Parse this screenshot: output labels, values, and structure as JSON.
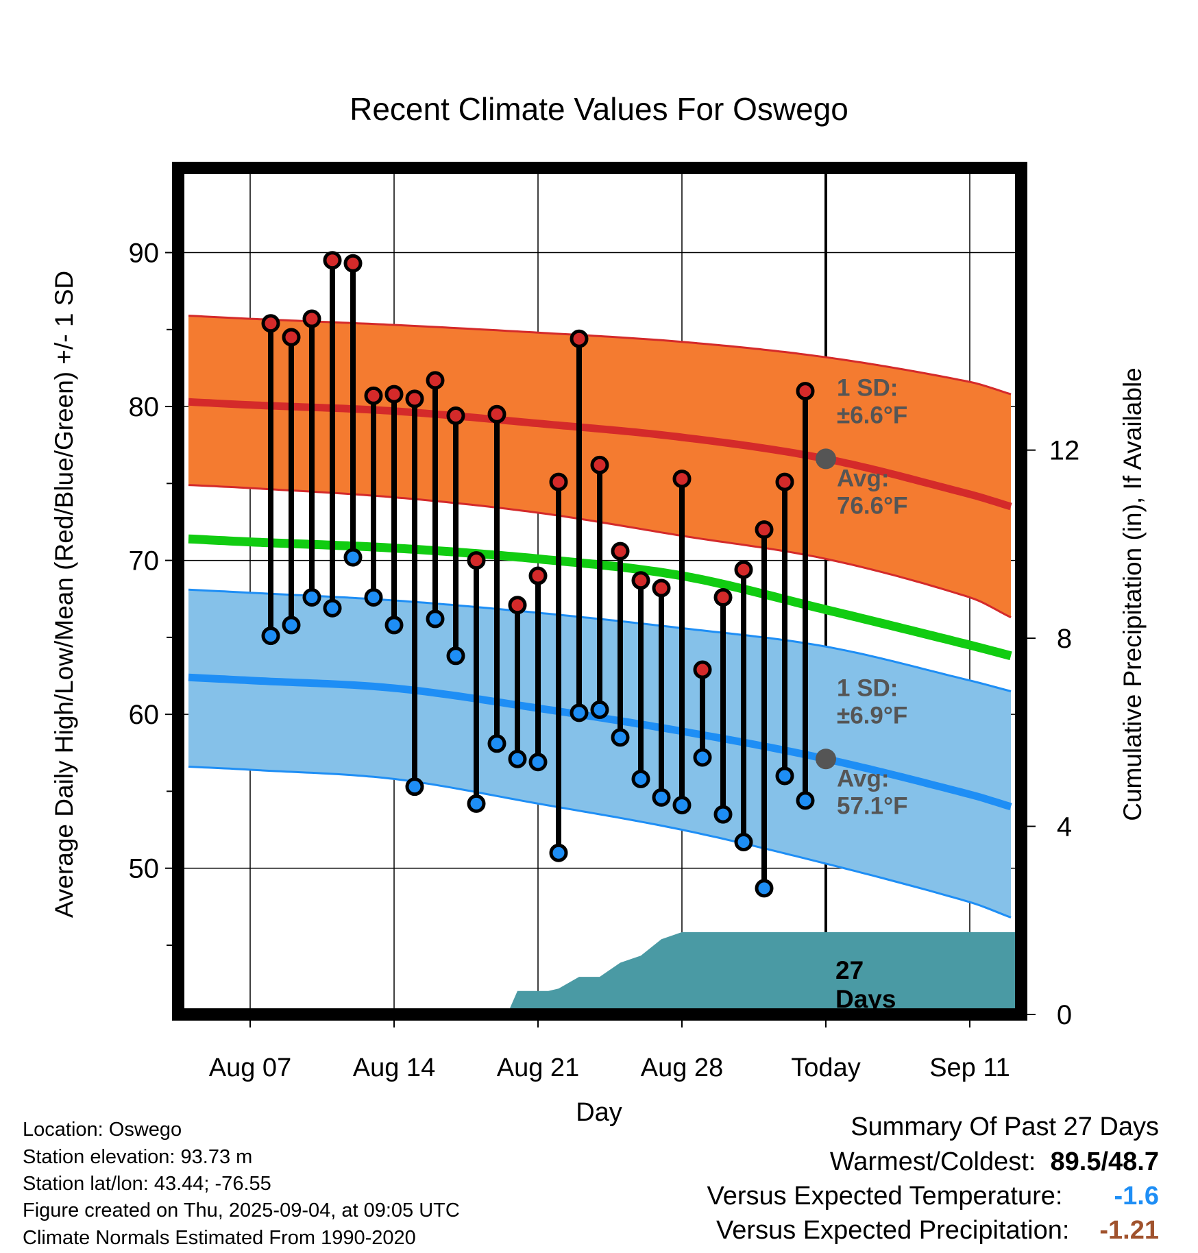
{
  "chart_data": {
    "type": "line",
    "title": "Recent Climate Values For Oswego",
    "xlabel": "Day",
    "ylabel": "Average Daily High/Low/Mean (Red/Blue/Green) +/- 1 SD",
    "y2label": "Cumulative Precipitation (in), If Available",
    "ylim": [
      40.5,
      95.5
    ],
    "y2lim": [
      0,
      18
    ],
    "xlim": [
      -3.5,
      37.5
    ],
    "x_ticks": [
      {
        "day": 0,
        "label": "Aug 07"
      },
      {
        "day": 7,
        "label": "Aug 14"
      },
      {
        "day": 14,
        "label": "Aug 21"
      },
      {
        "day": 21,
        "label": "Aug 28"
      },
      {
        "day": 28,
        "label": "Today"
      },
      {
        "day": 35,
        "label": "Sep 11"
      }
    ],
    "y_ticks": [
      50,
      60,
      70,
      80,
      90
    ],
    "y2_ticks": [
      0,
      4,
      8,
      12
    ],
    "today_day": 28,
    "grid": true,
    "colors": {
      "high_band": "#f47b30",
      "high_mean": "#d42a2a",
      "high_band_edge": "#d42a2a",
      "low_band": "#85c1e9",
      "low_mean": "#1e8ef5",
      "low_band_edge": "#1e8ef5",
      "mean_line": "#11cc11",
      "precip_fill": "#4a9aa4",
      "marker_high": "#d42a2a",
      "marker_low": "#1e8ef5",
      "today_marker": "#555555",
      "annotation": "#555555"
    },
    "normals": {
      "days": [
        -3,
        0,
        7,
        14,
        21,
        28,
        35,
        37
      ],
      "high_mean": [
        80.3,
        80.1,
        79.7,
        78.9,
        78.0,
        76.6,
        74.3,
        73.5
      ],
      "high_upper": [
        85.9,
        85.7,
        85.3,
        84.8,
        84.2,
        83.2,
        81.6,
        80.8
      ],
      "high_lower": [
        74.9,
        74.7,
        74.1,
        73.1,
        71.6,
        70.1,
        67.6,
        66.3
      ],
      "low_mean": [
        62.4,
        62.2,
        61.7,
        60.4,
        58.9,
        57.1,
        54.8,
        54.0
      ],
      "low_upper": [
        68.1,
        67.9,
        67.4,
        66.6,
        65.6,
        64.4,
        62.2,
        61.5
      ],
      "low_lower": [
        56.6,
        56.4,
        55.8,
        54.2,
        52.5,
        50.3,
        47.8,
        46.8
      ],
      "mean_line": [
        71.4,
        71.2,
        70.8,
        70.1,
        69.0,
        66.8,
        64.5,
        63.8
      ]
    },
    "observations": {
      "days": [
        1,
        2,
        3,
        4,
        5,
        6,
        7,
        8,
        9,
        10,
        11,
        12,
        13,
        14,
        15,
        16,
        17,
        18,
        19,
        20,
        21,
        22,
        23,
        24,
        25,
        26,
        27
      ],
      "high": [
        85.4,
        84.5,
        85.7,
        89.5,
        89.3,
        80.7,
        80.8,
        80.5,
        81.7,
        79.4,
        70.0,
        79.5,
        67.1,
        69.0,
        75.1,
        84.4,
        76.2,
        70.6,
        68.7,
        68.2,
        75.3,
        62.9,
        67.6,
        69.4,
        72.0,
        75.1,
        81.0
      ],
      "low": [
        65.1,
        65.8,
        67.6,
        66.9,
        70.2,
        67.6,
        65.8,
        55.3,
        66.2,
        63.8,
        54.2,
        58.1,
        57.1,
        56.9,
        51.0,
        60.1,
        60.3,
        58.5,
        55.8,
        54.6,
        54.1,
        57.2,
        53.5,
        51.7,
        48.7,
        56.0,
        54.4
      ]
    },
    "precipitation": {
      "days": [
        12.5,
        13.0,
        14.0,
        14.5,
        15.0,
        16.0,
        17.0,
        18.0,
        19.0,
        20.0,
        21.0,
        22.0,
        37.5
      ],
      "cumulative": [
        0.0,
        0.5,
        0.5,
        0.5,
        0.55,
        0.8,
        0.8,
        1.1,
        1.25,
        1.6,
        1.75,
        1.75,
        1.75
      ]
    },
    "annotations": {
      "high_sd_label": "1 SD:",
      "high_sd_value": "±6.6°F",
      "high_avg_label": "Avg:",
      "high_avg_value": "76.6°F",
      "low_sd_label": "1 SD:",
      "low_sd_value": "±6.9°F",
      "low_avg_label": "Avg:",
      "low_avg_value": "57.1°F",
      "days_count": "27",
      "days_word": "Days"
    }
  },
  "station_info": [
    "Location: Oswego",
    "Station elevation: 93.73 m",
    "Station lat/lon: 43.44; -76.55",
    "Figure created on Thu, 2025-09-04, at 09:05 UTC",
    "Climate Normals Estimated From 1990-2020"
  ],
  "summary": {
    "title": "Summary Of Past 27 Days",
    "warm_cold_label": "Warmest/Coldest:",
    "warmest": "89.5",
    "separator": "/",
    "coldest": "48.7",
    "temp_label": "Versus Expected Temperature:",
    "temp_value": "-1.6",
    "temp_color": "#1e8ef5",
    "precip_label": "Versus Expected Precipitation:",
    "precip_value": "-1.21",
    "precip_color": "#a0522d"
  }
}
